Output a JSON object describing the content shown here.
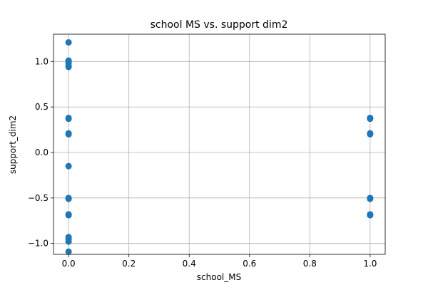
{
  "chart_data": {
    "type": "scatter",
    "title": "school MS vs. support dim2",
    "xlabel": "school_MS",
    "ylabel": "support_dim2",
    "xlim": [
      -0.05,
      1.05
    ],
    "ylim": [
      -1.12,
      1.3
    ],
    "xticks": [
      0.0,
      0.2,
      0.4,
      0.6,
      0.8,
      1.0
    ],
    "xtick_labels": [
      "0.0",
      "0.2",
      "0.4",
      "0.6",
      "0.8",
      "1.0"
    ],
    "yticks": [
      -1.0,
      -0.5,
      0.0,
      0.5,
      1.0
    ],
    "ytick_labels": [
      "−1.0",
      "−0.5",
      "0.0",
      "0.5",
      "1.0"
    ],
    "grid": true,
    "color": "#1f77b4",
    "series": [
      {
        "points": [
          {
            "x": 0,
            "y": 1.21
          },
          {
            "x": 0,
            "y": 1.01
          },
          {
            "x": 0,
            "y": 1.0
          },
          {
            "x": 0,
            "y": 0.98
          },
          {
            "x": 0,
            "y": 0.95
          },
          {
            "x": 0,
            "y": 0.94
          },
          {
            "x": 0,
            "y": 0.38
          },
          {
            "x": 0,
            "y": 0.37
          },
          {
            "x": 0,
            "y": 0.21
          },
          {
            "x": 0,
            "y": 0.2
          },
          {
            "x": 0,
            "y": -0.15
          },
          {
            "x": 0,
            "y": -0.5
          },
          {
            "x": 0,
            "y": -0.51
          },
          {
            "x": 0,
            "y": -0.68
          },
          {
            "x": 0,
            "y": -0.69
          },
          {
            "x": 0,
            "y": -0.93
          },
          {
            "x": 0,
            "y": -0.95
          },
          {
            "x": 0,
            "y": -0.98
          },
          {
            "x": 0,
            "y": -1.09
          },
          {
            "x": 1,
            "y": 0.38
          },
          {
            "x": 1,
            "y": 0.37
          },
          {
            "x": 1,
            "y": 0.21
          },
          {
            "x": 1,
            "y": 0.2
          },
          {
            "x": 1,
            "y": -0.5
          },
          {
            "x": 1,
            "y": -0.51
          },
          {
            "x": 1,
            "y": -0.68
          },
          {
            "x": 1,
            "y": -0.69
          }
        ]
      }
    ]
  }
}
